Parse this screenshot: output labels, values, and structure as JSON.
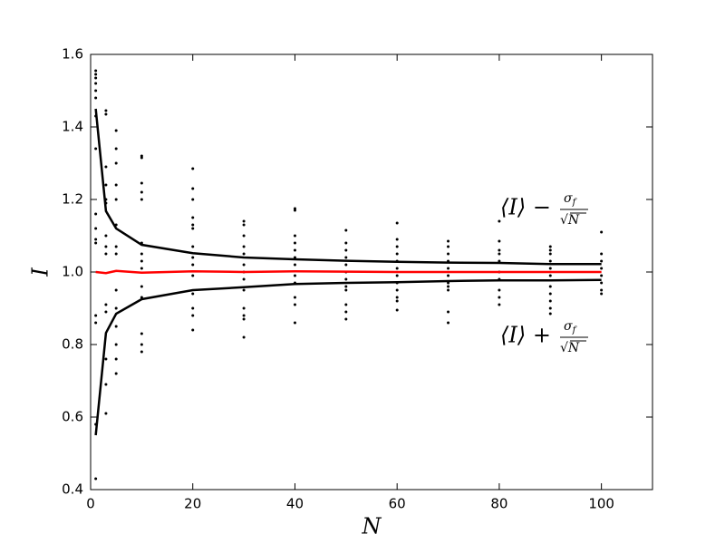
{
  "chart_data": {
    "type": "line",
    "x_label": "N",
    "y_label": "I",
    "xlim": [
      0,
      110
    ],
    "xticks": [
      0,
      20,
      40,
      60,
      80,
      100
    ],
    "ylim": [
      0.4,
      1.6
    ],
    "yticks": [
      0.4,
      0.6,
      0.8,
      {
        "value": 1,
        "label": "1.0"
      },
      1.2,
      1.4,
      1.6
    ],
    "x": [
      1,
      3,
      5,
      10,
      20,
      30,
      40,
      50,
      60,
      70,
      80,
      90,
      100
    ],
    "annotations": [
      {
        "lhs": "⟨I⟩ −",
        "numerator": "σ",
        "subscript": "f",
        "denominator": "√N"
      },
      {
        "lhs": "⟨I⟩ +",
        "numerator": "σ",
        "subscript": "f",
        "denominator": "√N"
      }
    ],
    "series": [
      {
        "type": "scatter",
        "color": "#000000",
        "x": [
          1,
          1,
          1,
          1,
          1,
          1,
          1,
          1,
          1,
          1,
          1,
          1,
          1,
          1,
          1,
          1,
          3,
          3,
          3,
          3,
          3,
          3,
          3,
          3,
          3,
          3,
          3,
          3,
          3,
          3,
          5,
          5,
          5,
          5,
          5,
          5,
          5,
          5,
          5,
          5,
          5,
          5,
          5,
          5,
          10,
          10,
          10,
          10,
          10,
          10,
          10,
          10,
          10,
          10,
          10,
          10,
          10,
          10,
          20,
          20,
          20,
          20,
          20,
          20,
          20,
          20,
          20,
          20,
          20,
          20,
          20,
          20,
          30,
          30,
          30,
          30,
          30,
          30,
          30,
          30,
          30,
          30,
          30,
          30,
          30,
          40,
          40,
          40,
          40,
          40,
          40,
          40,
          40,
          40,
          40,
          40,
          40,
          50,
          50,
          50,
          50,
          50,
          50,
          50,
          50,
          50,
          50,
          50,
          50,
          60,
          60,
          60,
          60,
          60,
          60,
          60,
          60,
          60,
          60,
          60,
          60,
          70,
          70,
          70,
          70,
          70,
          70,
          70,
          70,
          70,
          70,
          70,
          80,
          80,
          80,
          80,
          80,
          80,
          80,
          80,
          80,
          80,
          90,
          90,
          90,
          90,
          90,
          90,
          90,
          90,
          90,
          90,
          90,
          100,
          100,
          100,
          100,
          100,
          100,
          100,
          100
        ],
        "values": [
          1.555,
          1.545,
          1.535,
          1.52,
          1.5,
          1.48,
          1.43,
          1.34,
          1.16,
          1.12,
          1.09,
          1.08,
          0.88,
          0.86,
          0.58,
          0.43,
          1.445,
          1.435,
          1.29,
          1.24,
          1.2,
          1.19,
          1.1,
          1.07,
          1.05,
          0.91,
          0.89,
          0.76,
          0.69,
          0.61,
          1.39,
          1.34,
          1.3,
          1.24,
          1.2,
          1.13,
          1.07,
          1.05,
          0.95,
          0.9,
          0.85,
          0.8,
          0.76,
          0.72,
          1.32,
          1.315,
          1.245,
          1.22,
          1.2,
          1.08,
          1.05,
          1.03,
          1.01,
          0.96,
          0.93,
          0.83,
          0.8,
          0.78,
          1.285,
          1.23,
          1.2,
          1.15,
          1.13,
          1.12,
          1.07,
          1.04,
          1.02,
          0.99,
          0.94,
          0.9,
          0.88,
          0.84,
          1.14,
          1.13,
          1.1,
          1.07,
          1.05,
          1.02,
          1.0,
          0.98,
          0.95,
          0.9,
          0.88,
          0.87,
          0.82,
          1.175,
          1.17,
          1.1,
          1.08,
          1.06,
          1.04,
          1.02,
          0.99,
          0.97,
          0.93,
          0.91,
          0.86,
          1.115,
          1.08,
          1.06,
          1.04,
          1.02,
          1.0,
          0.98,
          0.96,
          0.95,
          0.91,
          0.89,
          0.87,
          1.135,
          1.09,
          1.07,
          1.05,
          1.03,
          1.01,
          0.99,
          0.97,
          0.95,
          0.93,
          0.92,
          0.895,
          1.085,
          1.07,
          1.05,
          1.03,
          1.01,
          0.99,
          0.97,
          0.96,
          0.95,
          0.89,
          0.86,
          1.14,
          1.085,
          1.06,
          1.05,
          1.03,
          1.0,
          0.98,
          0.95,
          0.93,
          0.91,
          1.07,
          1.06,
          1.05,
          1.03,
          1.01,
          0.99,
          0.96,
          0.94,
          0.92,
          0.9,
          0.885,
          1.11,
          1.05,
          1.03,
          1.01,
          0.99,
          0.97,
          0.95,
          0.94
        ]
      },
      {
        "type": "line",
        "color": "#000000",
        "values": [
          1.45,
          1.168,
          1.12,
          1.075,
          1.052,
          1.04,
          1.035,
          1.031,
          1.028,
          1.026,
          1.025,
          1.022,
          1.022
        ]
      },
      {
        "type": "line",
        "color": "#000000",
        "values": [
          0.55,
          0.832,
          0.885,
          0.925,
          0.95,
          0.958,
          0.967,
          0.97,
          0.972,
          0.975,
          0.977,
          0.977,
          0.978
        ]
      },
      {
        "type": "line",
        "color": "#ff0000",
        "values": [
          1.0,
          0.997,
          1.003,
          0.998,
          1.002,
          1.0,
          1.002,
          1.001,
          1.0,
          1.0,
          1.0,
          1.0,
          1.0
        ]
      }
    ]
  }
}
